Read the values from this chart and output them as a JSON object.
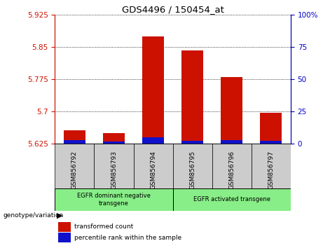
{
  "title": "GDS4496 / 150454_at",
  "samples": [
    "GSM856792",
    "GSM856793",
    "GSM856794",
    "GSM856795",
    "GSM856796",
    "GSM856797"
  ],
  "red_values": [
    5.657,
    5.65,
    5.875,
    5.843,
    5.78,
    5.698
  ],
  "blue_percentiles": [
    3.0,
    2.0,
    5.0,
    2.5,
    3.0,
    2.5
  ],
  "ymin": 5.625,
  "ymax": 5.925,
  "yticks_left": [
    5.625,
    5.7,
    5.775,
    5.85,
    5.925
  ],
  "yticks_right": [
    0,
    25,
    50,
    75,
    100
  ],
  "bar_color_red": "#CC1100",
  "bar_color_blue": "#1111CC",
  "bar_width": 0.55,
  "label_transformed": "transformed count",
  "label_percentile": "percentile rank within the sample",
  "genotype_label": "genotype/variation",
  "group1_label": "EGFR dominant negative\ntransgene",
  "group2_label": "EGFR activated transgene",
  "group_color": "#88EE88",
  "tick_color_left": "#CC1100",
  "tick_color_right": "#0000CC",
  "sample_box_color": "#CCCCCC"
}
